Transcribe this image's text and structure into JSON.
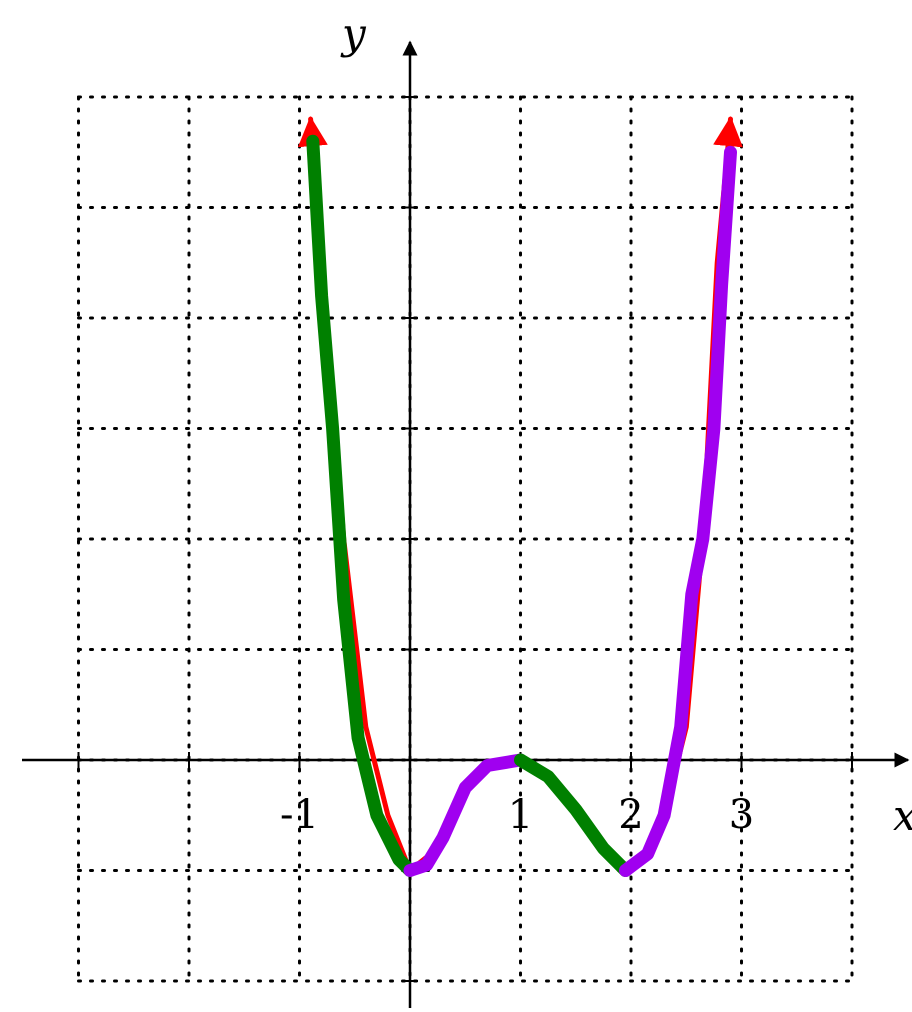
{
  "chart_data": {
    "type": "line",
    "title": "",
    "xlabel": "x",
    "ylabel": "y",
    "xlim": [
      -3,
      4
    ],
    "ylim": [
      -2,
      6
    ],
    "x_tick_labels": [
      {
        "x": -1,
        "label": "-1"
      },
      {
        "x": 1,
        "label": "1"
      },
      {
        "x": 2,
        "label": "2"
      },
      {
        "x": 3,
        "label": "3"
      }
    ],
    "grid": true,
    "base_curve": {
      "color": "#ff0000",
      "arrows_at_ends": true,
      "points": [
        [
          -0.9,
          5.8
        ],
        [
          -0.75,
          4.0
        ],
        [
          -0.6,
          2.0
        ],
        [
          -0.4,
          0.3
        ],
        [
          -0.2,
          -0.5
        ],
        [
          0.0,
          -1.0
        ],
        [
          0.25,
          -0.8
        ],
        [
          0.5,
          -0.25
        ],
        [
          0.75,
          -0.05
        ],
        [
          1.0,
          0.0
        ],
        [
          1.25,
          -0.15
        ],
        [
          1.5,
          -0.45
        ],
        [
          1.75,
          -0.8
        ],
        [
          2.0,
          -1.0
        ],
        [
          2.25,
          -0.7
        ],
        [
          2.5,
          0.3
        ],
        [
          2.65,
          2.0
        ],
        [
          2.78,
          4.5
        ],
        [
          2.9,
          5.8
        ]
      ]
    },
    "series": [
      {
        "color": "#008000",
        "points": [
          [
            -0.88,
            5.6
          ],
          [
            -0.8,
            4.2
          ],
          [
            -0.7,
            3.0
          ],
          [
            -0.6,
            1.45
          ],
          [
            -0.47,
            0.2
          ],
          [
            -0.3,
            -0.5
          ],
          [
            -0.1,
            -0.9
          ],
          [
            0.0,
            -1.0
          ]
        ]
      },
      {
        "color": "#a000f0",
        "points": [
          [
            0.0,
            -1.0
          ],
          [
            0.15,
            -0.95
          ],
          [
            0.3,
            -0.7
          ],
          [
            0.5,
            -0.25
          ],
          [
            0.7,
            -0.05
          ],
          [
            1.0,
            0.0
          ]
        ]
      },
      {
        "color": "#008000",
        "points": [
          [
            1.0,
            0.0
          ],
          [
            1.25,
            -0.15
          ],
          [
            1.5,
            -0.45
          ],
          [
            1.75,
            -0.8
          ],
          [
            1.95,
            -1.0
          ]
        ]
      },
      {
        "color": "#a000f0",
        "points": [
          [
            1.95,
            -1.0
          ],
          [
            2.15,
            -0.85
          ],
          [
            2.3,
            -0.5
          ],
          [
            2.45,
            0.3
          ],
          [
            2.55,
            1.5
          ],
          [
            2.65,
            2.0
          ],
          [
            2.75,
            3.0
          ],
          [
            2.82,
            4.3
          ],
          [
            2.9,
            5.5
          ]
        ]
      }
    ]
  }
}
